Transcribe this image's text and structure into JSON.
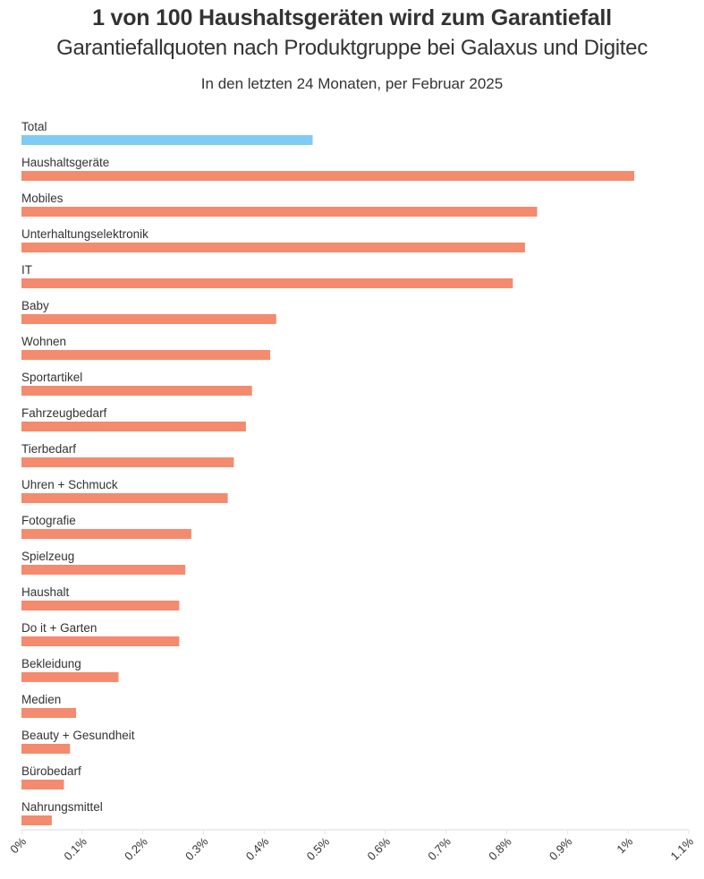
{
  "header": {
    "title": "1 von 100 Haushaltsgeräten wird zum Garantiefall",
    "subtitle": "Garantiefallquoten nach Produktgruppe bei Galaxus und Digitec",
    "subsubtitle": "In den letzten 24 Monaten, per Februar 2025"
  },
  "chart_data": {
    "type": "bar",
    "orientation": "horizontal",
    "title": "1 von 100 Haushaltsgeräten wird zum Garantiefall",
    "subtitle": "Garantiefallquoten nach Produktgruppe bei Galaxus und Digitec",
    "categories": [
      "Total",
      "Haushaltsgeräte",
      "Mobiles",
      "Unterhaltungselektronik",
      "IT",
      "Baby",
      "Wohnen",
      "Sportartikel",
      "Fahrzeugbedarf",
      "Tierbedarf",
      "Uhren + Schmuck",
      "Fotografie",
      "Spielzeug",
      "Haushalt",
      "Do it + Garten",
      "Bekleidung",
      "Medien",
      "Beauty + Gesundheit",
      "Bürobedarf",
      "Nahrungsmittel"
    ],
    "values": [
      0.48,
      1.01,
      0.85,
      0.83,
      0.81,
      0.42,
      0.41,
      0.38,
      0.37,
      0.35,
      0.34,
      0.28,
      0.27,
      0.26,
      0.26,
      0.16,
      0.09,
      0.08,
      0.07,
      0.05
    ],
    "unit": "%",
    "xlim": [
      0,
      1.1
    ],
    "xticks": [
      0,
      0.1,
      0.2,
      0.3,
      0.4,
      0.5,
      0.6,
      0.7,
      0.8,
      0.9,
      1.0,
      1.1
    ],
    "xtick_labels": [
      "0%",
      "0.1%",
      "0.2%",
      "0.3%",
      "0.4%",
      "0.5%",
      "0.6%",
      "0.7%",
      "0.8%",
      "0.9%",
      "1%",
      "1.1%"
    ],
    "xlabel": "",
    "ylabel": "",
    "grid": false,
    "colors": {
      "highlight": "#7ecbf5",
      "default": "#f48a6e",
      "axis": "#e6e6e6"
    },
    "highlight_category": "Total"
  }
}
